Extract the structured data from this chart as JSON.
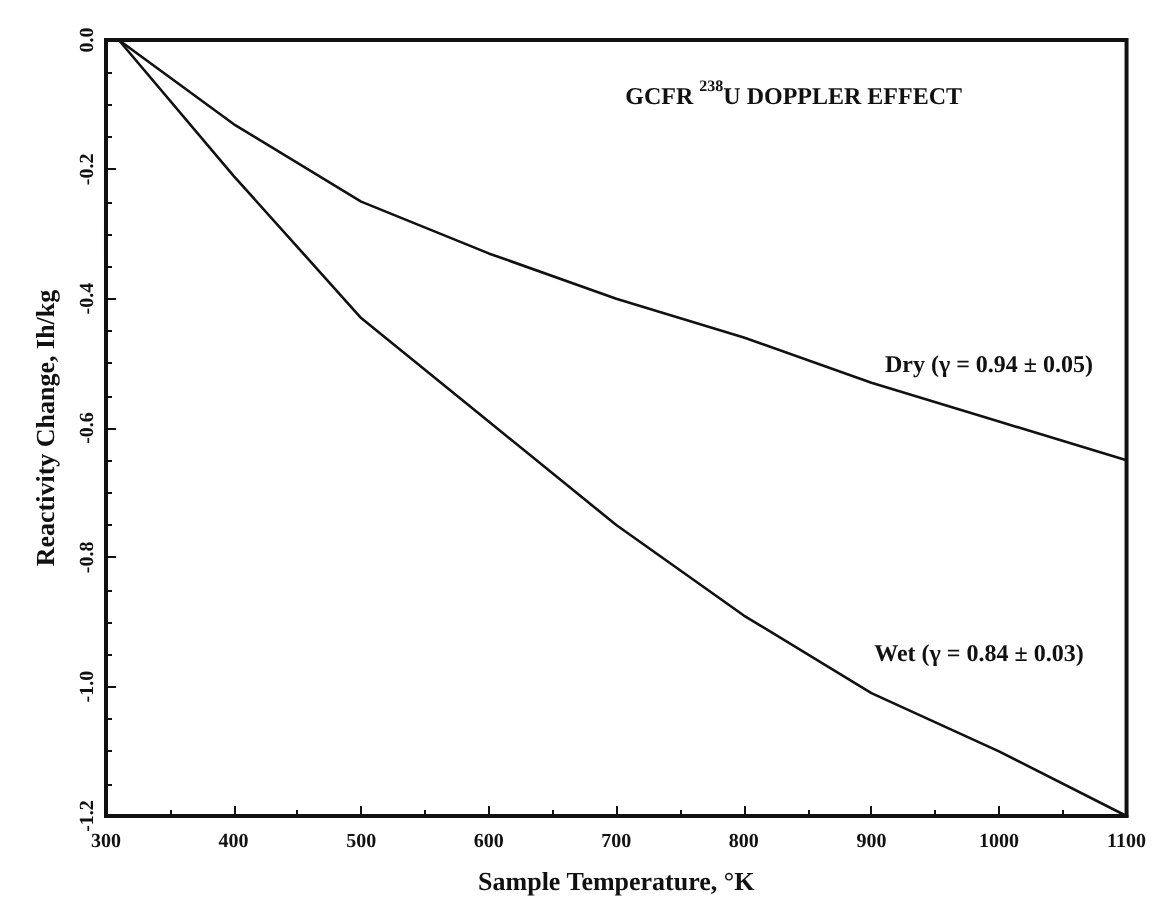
{
  "chart_data": {
    "type": "line",
    "title": "GCFR $^{238}$U DOPPLER EFFECT",
    "xlabel": "Sample Temperature, °K",
    "ylabel": "Reactivity Change, Ih/kg",
    "x": [
      310,
      400,
      500,
      600,
      700,
      800,
      900,
      1000,
      1100
    ],
    "series": [
      {
        "name": "Dry (γ = 0.94 ± 0.05)",
        "color": "#111111",
        "values": [
          0,
          -0.13,
          -0.25,
          -0.33,
          -0.4,
          -0.46,
          -0.53,
          -0.59,
          -0.65
        ]
      },
      {
        "name": "Wet (γ = 0.84 ± 0.03)",
        "color": "#111111",
        "values": [
          0,
          -0.21,
          -0.43,
          -0.59,
          -0.75,
          -0.89,
          -1.01,
          -1.1,
          -1.2
        ]
      }
    ],
    "xlim": [
      300,
      1100
    ],
    "xticks": [
      300,
      400,
      500,
      600,
      700,
      800,
      900,
      1000,
      1100
    ],
    "ylim": [
      -1.2,
      0
    ],
    "yticks": [
      {
        "value": 0,
        "label": "0.0"
      },
      {
        "value": -0.2,
        "label": "-0.2"
      },
      {
        "value": -0.4,
        "label": "-0.4"
      },
      {
        "value": -0.6,
        "label": "-0.6"
      },
      {
        "value": -0.8,
        "label": "-0.8"
      },
      {
        "value": -1,
        "label": "-1.0"
      },
      {
        "value": -1.2,
        "label": "-1.2"
      }
    ],
    "grid": false,
    "legend": false,
    "marker": "none",
    "line_style": "solid"
  }
}
